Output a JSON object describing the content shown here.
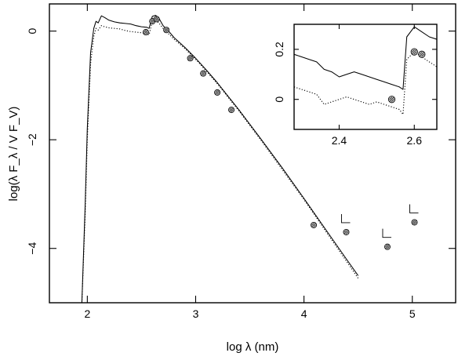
{
  "chart_data": [
    {
      "type": "line",
      "title": "",
      "xlabel": "log λ (nm)",
      "ylabel": "log(λ F_λ / V F_V)",
      "xlim": [
        1.65,
        5.4
      ],
      "ylim": [
        -5.0,
        0.5
      ],
      "xticks": [
        2,
        3,
        4,
        5
      ],
      "yticks": [
        0,
        -2,
        -4
      ],
      "xtick_labels": [
        "2",
        "3",
        "4",
        "5"
      ],
      "ytick_labels": [
        "0",
        "−2",
        "−4"
      ],
      "grid": false,
      "legend": "none",
      "series": [
        {
          "style": "solid",
          "x": [
            1.95,
            1.98,
            2.0,
            2.03,
            2.06,
            2.08,
            2.1,
            2.13,
            2.16,
            2.2,
            2.25,
            2.3,
            2.35,
            2.4,
            2.45,
            2.5,
            2.55,
            2.57,
            2.6,
            2.63,
            2.66,
            2.7,
            2.75,
            2.8,
            2.9,
            3.0,
            3.1,
            3.2,
            3.3,
            3.4,
            3.6,
            3.8,
            4.0,
            4.2,
            4.4,
            4.5
          ],
          "y": [
            -5.0,
            -3.2,
            -1.8,
            -0.4,
            0.05,
            0.18,
            0.15,
            0.28,
            0.25,
            0.2,
            0.17,
            0.15,
            0.14,
            0.13,
            0.1,
            0.08,
            0.07,
            0.05,
            0.27,
            0.29,
            0.24,
            0.1,
            0.0,
            -0.12,
            -0.3,
            -0.5,
            -0.72,
            -0.95,
            -1.2,
            -1.45,
            -1.98,
            -2.52,
            -3.08,
            -3.65,
            -4.22,
            -4.5
          ]
        },
        {
          "style": "dotted",
          "x": [
            1.95,
            1.98,
            2.0,
            2.03,
            2.06,
            2.08,
            2.1,
            2.13,
            2.16,
            2.2,
            2.25,
            2.3,
            2.35,
            2.4,
            2.45,
            2.5,
            2.55,
            2.57,
            2.6,
            2.63,
            2.66,
            2.7,
            2.75,
            2.8,
            2.9,
            3.0,
            3.1,
            3.2,
            3.3,
            3.4,
            3.6,
            3.8,
            4.0,
            4.2,
            4.4,
            4.5
          ],
          "y": [
            -5.0,
            -3.4,
            -2.0,
            -0.6,
            -0.1,
            0.05,
            0.02,
            0.1,
            0.08,
            0.06,
            0.05,
            0.04,
            0.01,
            -0.01,
            -0.02,
            -0.03,
            -0.05,
            -0.07,
            0.18,
            0.2,
            0.15,
            0.05,
            -0.05,
            -0.15,
            -0.32,
            -0.52,
            -0.74,
            -0.97,
            -1.22,
            -1.47,
            -2.0,
            -2.55,
            -3.1,
            -3.68,
            -4.26,
            -4.55
          ]
        }
      ],
      "points": {
        "x": [
          2.54,
          2.6,
          2.64,
          2.73,
          2.95,
          3.07,
          3.2,
          3.33,
          4.09,
          4.39,
          4.77,
          5.02
        ],
        "y": [
          -0.02,
          0.18,
          0.22,
          0.02,
          -0.5,
          -0.78,
          -1.13,
          -1.45,
          -3.57,
          -3.7,
          -3.97,
          -3.52
        ]
      },
      "upper_limits_x": [
        4.39,
        4.77,
        5.02
      ]
    },
    {
      "type": "line",
      "title": "",
      "xlim": [
        2.28,
        2.66
      ],
      "ylim": [
        -0.12,
        0.3
      ],
      "xticks": [
        2.4,
        2.6
      ],
      "yticks": [
        0,
        0.2
      ],
      "xtick_labels": [
        "2.4",
        "2.6"
      ],
      "ytick_labels": [
        "0",
        "0.2"
      ],
      "grid": false,
      "series": [
        {
          "style": "solid",
          "x": [
            2.28,
            2.3,
            2.32,
            2.34,
            2.36,
            2.38,
            2.4,
            2.42,
            2.44,
            2.46,
            2.48,
            2.5,
            2.52,
            2.54,
            2.56,
            2.57,
            2.58,
            2.6,
            2.62,
            2.64,
            2.66
          ],
          "y": [
            0.18,
            0.17,
            0.16,
            0.15,
            0.12,
            0.11,
            0.09,
            0.1,
            0.11,
            0.1,
            0.09,
            0.08,
            0.07,
            0.06,
            0.05,
            0.04,
            0.25,
            0.29,
            0.27,
            0.25,
            0.24
          ]
        },
        {
          "style": "dotted",
          "x": [
            2.28,
            2.3,
            2.32,
            2.34,
            2.36,
            2.38,
            2.4,
            2.42,
            2.44,
            2.46,
            2.48,
            2.5,
            2.52,
            2.54,
            2.56,
            2.57,
            2.58,
            2.6,
            2.62,
            2.64,
            2.66
          ],
          "y": [
            0.05,
            0.04,
            0.03,
            0.02,
            -0.02,
            -0.01,
            0.0,
            0.01,
            0.0,
            -0.01,
            -0.02,
            -0.01,
            -0.02,
            -0.03,
            -0.04,
            -0.06,
            0.16,
            0.19,
            0.17,
            0.15,
            0.13
          ]
        }
      ],
      "points": {
        "x": [
          2.54,
          2.6,
          2.62
        ],
        "y": [
          0.0,
          0.19,
          0.18
        ]
      }
    }
  ]
}
